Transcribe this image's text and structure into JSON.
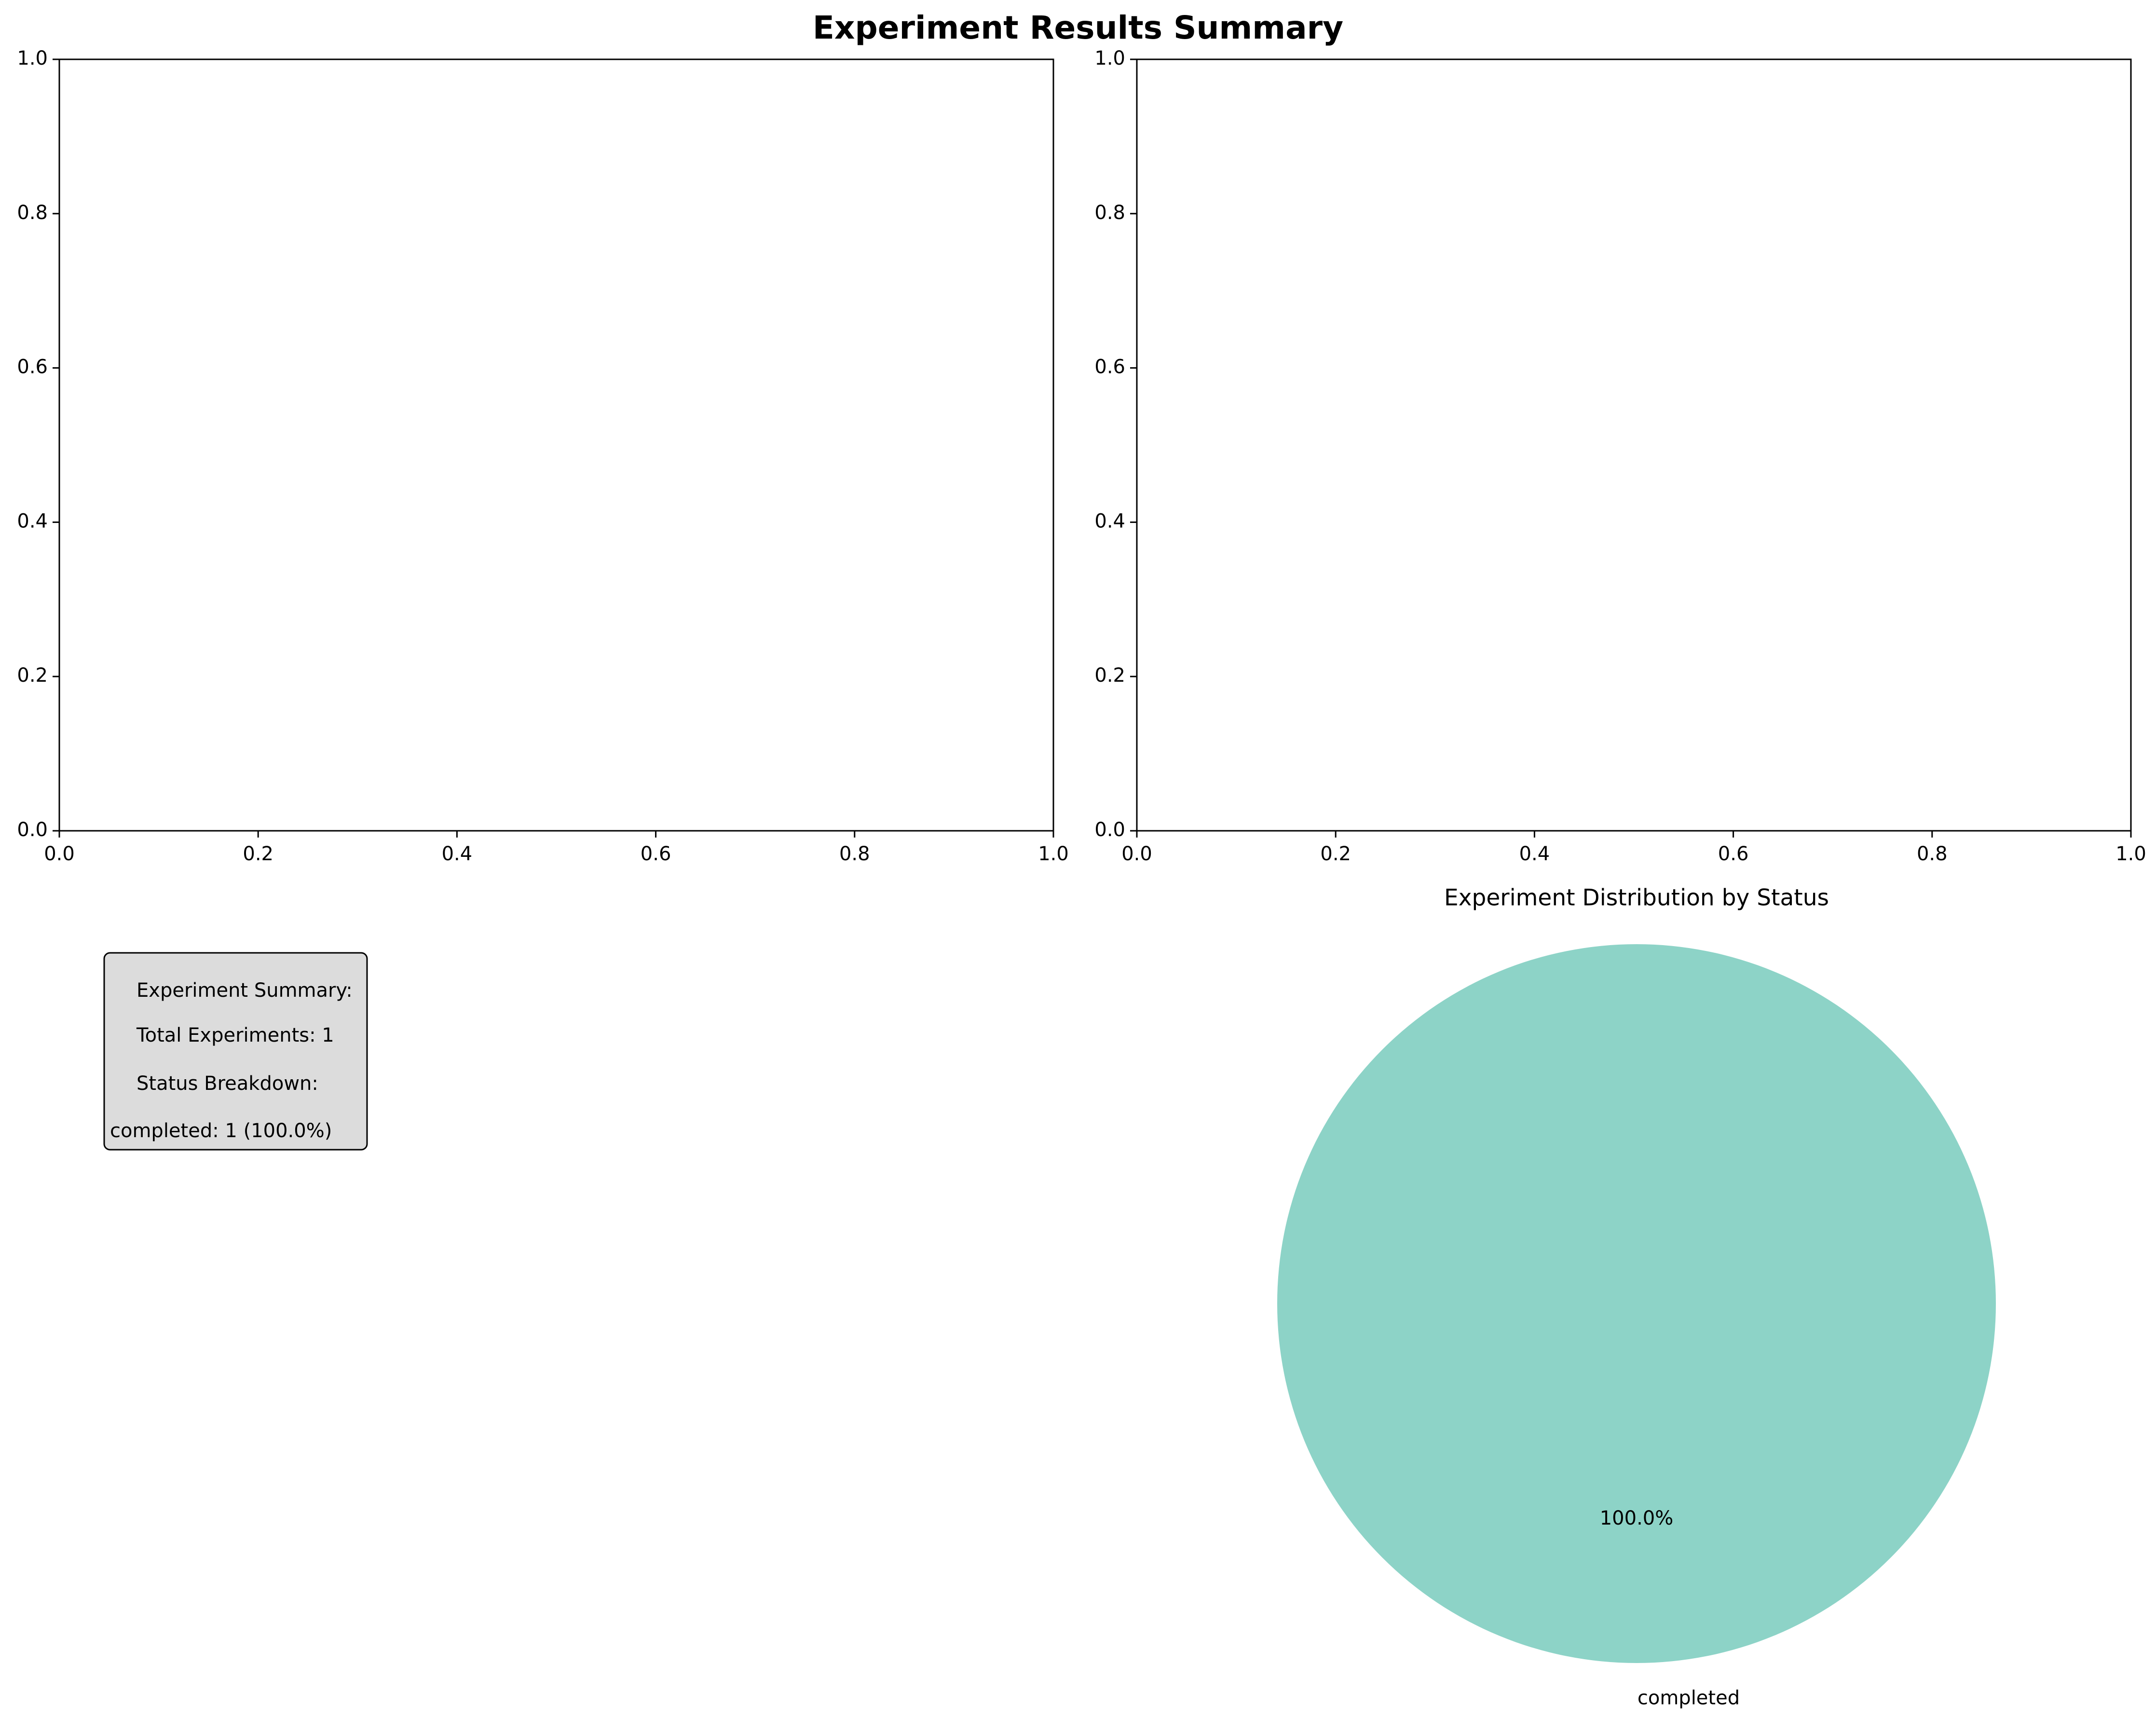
{
  "figure": {
    "suptitle": "Experiment Results Summary"
  },
  "empty_axes": [
    {
      "xticks": [
        "0.0",
        "0.2",
        "0.4",
        "0.6",
        "0.8",
        "1.0"
      ],
      "yticks": [
        "0.0",
        "0.2",
        "0.4",
        "0.6",
        "0.8",
        "1.0"
      ]
    },
    {
      "xticks": [
        "0.0",
        "0.2",
        "0.4",
        "0.6",
        "0.8",
        "1.0"
      ],
      "yticks": [
        "0.0",
        "0.2",
        "0.4",
        "0.6",
        "0.8",
        "1.0"
      ]
    }
  ],
  "summary_box": {
    "lines": [
      "Experiment Summary:",
      "Total Experiments: 1",
      "Status Breakdown:",
      "completed: 1 (100.0%)"
    ],
    "background_color": "#dcdcdc"
  },
  "chart_data": [
    {
      "type": "line",
      "title": "",
      "xlabel": "",
      "ylabel": "",
      "xlim": [
        0,
        1
      ],
      "ylim": [
        0,
        1
      ],
      "series": []
    },
    {
      "type": "line",
      "title": "",
      "xlabel": "",
      "ylabel": "",
      "xlim": [
        0,
        1
      ],
      "ylim": [
        0,
        1
      ],
      "series": []
    },
    {
      "type": "pie",
      "title": "Experiment Distribution by Status",
      "labels": [
        "completed"
      ],
      "values": [
        1
      ],
      "percent_labels": [
        "100.0%"
      ],
      "colors": [
        "#8dd3c7"
      ]
    }
  ]
}
